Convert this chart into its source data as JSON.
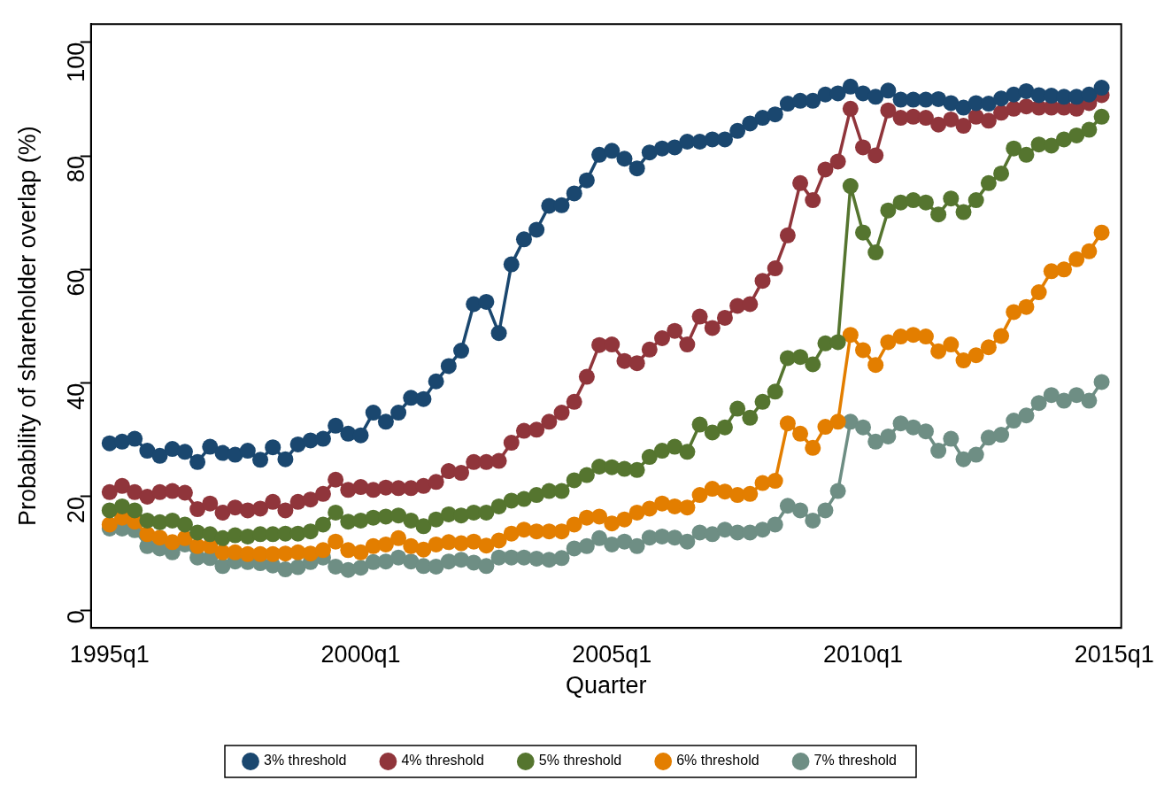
{
  "chart_data": {
    "type": "line",
    "xlabel": "Quarter",
    "ylabel": "Probability of shareholder overlap (%)",
    "categories": [
      "1995q1",
      null,
      null,
      null,
      null,
      null,
      null,
      null,
      null,
      null,
      null,
      null,
      null,
      null,
      null,
      null,
      null,
      null,
      null,
      null,
      "2000q1",
      null,
      null,
      null,
      null,
      null,
      null,
      null,
      null,
      null,
      null,
      null,
      null,
      null,
      null,
      null,
      null,
      null,
      null,
      null,
      "2005q1",
      null,
      null,
      null,
      null,
      null,
      null,
      null,
      null,
      null,
      null,
      null,
      null,
      null,
      null,
      null,
      null,
      null,
      null,
      null,
      "2010q1",
      null,
      null,
      null,
      null,
      null,
      null,
      null,
      null,
      null,
      null,
      null,
      null,
      null,
      null,
      null,
      null,
      null,
      null,
      null,
      "2015q1"
    ],
    "ylim": [
      -3.1,
      103.2
    ],
    "yticks": [
      0,
      20,
      40,
      60,
      80,
      100
    ],
    "legend": "bottom",
    "marker": "circle",
    "line_style": "solid",
    "series": [
      {
        "name": "3% threshold",
        "color": "#1a476f",
        "values": [
          29.4,
          29.7,
          30.2,
          28.1,
          27.2,
          28.4,
          27.9,
          26.1,
          28.8,
          27.7,
          27.4,
          28.1,
          26.5,
          28.7,
          26.6,
          29.2,
          29.9,
          30.2,
          32.5,
          31.1,
          30.8,
          34.8,
          33.2,
          34.8,
          37.4,
          37.2,
          40.3,
          43.0,
          45.7,
          53.9,
          54.3,
          48.8,
          60.9,
          65.3,
          67.0,
          71.2,
          71.3,
          73.4,
          75.7,
          80.2,
          80.9,
          79.5,
          77.8,
          80.6,
          81.3,
          81.5,
          82.5,
          82.5,
          82.9,
          82.9,
          84.4,
          85.7,
          86.7,
          87.3,
          89.2,
          89.7,
          89.7,
          90.8,
          91.0,
          92.2,
          91.0,
          90.4,
          91.5,
          89.9,
          89.9,
          89.9,
          90.0,
          89.3,
          88.5,
          89.3,
          89.2,
          90.1,
          90.8,
          91.4,
          90.7,
          90.6,
          90.4,
          90.4,
          90.8,
          92.0,
          null
        ]
      },
      {
        "name": "4% threshold",
        "color": "#90353b",
        "values": [
          20.8,
          21.9,
          20.8,
          20.0,
          20.8,
          21.0,
          20.7,
          17.8,
          18.8,
          17.2,
          18.1,
          17.6,
          17.9,
          19.1,
          17.6,
          19.1,
          19.5,
          20.5,
          23.0,
          21.2,
          21.7,
          21.2,
          21.6,
          21.5,
          21.5,
          21.9,
          22.6,
          24.5,
          24.2,
          26.1,
          26.1,
          26.3,
          29.5,
          31.6,
          31.8,
          33.2,
          34.8,
          36.7,
          41.1,
          46.7,
          46.8,
          43.9,
          43.5,
          45.9,
          47.9,
          49.2,
          46.8,
          51.7,
          49.7,
          51.5,
          53.6,
          53.9,
          58.0,
          60.2,
          66.0,
          75.2,
          72.2,
          77.6,
          79.0,
          88.3,
          81.5,
          80.1,
          88.0,
          86.7,
          86.9,
          86.7,
          85.5,
          86.4,
          85.3,
          86.9,
          86.2,
          87.6,
          88.3,
          88.7,
          88.5,
          88.5,
          88.5,
          88.3,
          89.3,
          90.7,
          null
        ]
      },
      {
        "name": "5% threshold",
        "color": "#55752f",
        "values": [
          17.6,
          18.3,
          17.6,
          15.8,
          15.5,
          15.8,
          15.1,
          13.7,
          13.4,
          12.7,
          13.2,
          13.0,
          13.4,
          13.4,
          13.5,
          13.5,
          13.9,
          15.1,
          17.2,
          15.6,
          15.8,
          16.3,
          16.5,
          16.7,
          15.8,
          14.8,
          16.0,
          16.9,
          16.7,
          17.2,
          17.2,
          18.3,
          19.3,
          19.6,
          20.3,
          21.0,
          21.0,
          22.9,
          23.8,
          25.3,
          25.2,
          24.9,
          24.7,
          27.0,
          28.1,
          28.8,
          27.9,
          32.7,
          31.3,
          32.2,
          35.5,
          33.9,
          36.7,
          38.5,
          44.4,
          44.6,
          43.3,
          47.0,
          47.2,
          74.7,
          66.5,
          63.0,
          70.4,
          71.8,
          72.2,
          71.8,
          69.7,
          72.5,
          70.1,
          72.2,
          75.2,
          76.9,
          81.3,
          80.2,
          82.0,
          81.8,
          82.9,
          83.6,
          84.6,
          86.9,
          null
        ]
      },
      {
        "name": "6% threshold",
        "color": "#e37e00",
        "values": [
          15.1,
          16.3,
          15.6,
          13.4,
          12.8,
          12.0,
          12.7,
          11.3,
          11.3,
          10.2,
          10.2,
          9.9,
          9.9,
          9.9,
          10.0,
          10.2,
          10.0,
          10.6,
          12.1,
          10.6,
          10.2,
          11.3,
          11.6,
          12.7,
          11.3,
          10.7,
          11.6,
          12.0,
          11.8,
          12.1,
          11.4,
          12.3,
          13.5,
          14.2,
          13.9,
          13.9,
          13.9,
          15.1,
          16.3,
          16.5,
          15.3,
          16.0,
          17.2,
          17.9,
          18.8,
          18.3,
          18.1,
          20.3,
          21.4,
          20.9,
          20.3,
          20.5,
          22.4,
          22.8,
          32.9,
          31.1,
          28.6,
          32.3,
          33.2,
          48.5,
          45.8,
          43.2,
          47.2,
          48.2,
          48.5,
          48.2,
          45.6,
          46.8,
          44.0,
          44.9,
          46.3,
          48.3,
          52.5,
          53.4,
          56.0,
          59.7,
          60.0,
          61.8,
          63.2,
          66.5,
          null
        ]
      },
      {
        "name": "7% threshold",
        "color": "#6e8e84",
        "values": [
          14.4,
          14.4,
          14.1,
          11.3,
          10.9,
          10.2,
          11.6,
          9.3,
          9.2,
          7.8,
          8.6,
          8.5,
          8.3,
          7.9,
          7.2,
          7.6,
          8.5,
          9.3,
          7.7,
          7.1,
          7.5,
          8.5,
          8.6,
          9.3,
          8.6,
          7.8,
          7.7,
          8.6,
          8.9,
          8.4,
          7.8,
          9.3,
          9.3,
          9.3,
          9.1,
          8.9,
          9.2,
          10.9,
          11.3,
          12.7,
          11.6,
          12.1,
          11.3,
          12.8,
          13.0,
          12.8,
          12.1,
          13.7,
          13.4,
          14.2,
          13.7,
          13.7,
          14.2,
          15.1,
          18.4,
          17.6,
          15.8,
          17.6,
          21.0,
          33.2,
          32.2,
          29.7,
          30.6,
          32.9,
          32.2,
          31.5,
          28.1,
          30.2,
          26.6,
          27.4,
          30.4,
          30.9,
          33.4,
          34.3,
          36.5,
          37.9,
          36.9,
          37.9,
          36.9,
          40.2,
          null
        ]
      }
    ]
  }
}
